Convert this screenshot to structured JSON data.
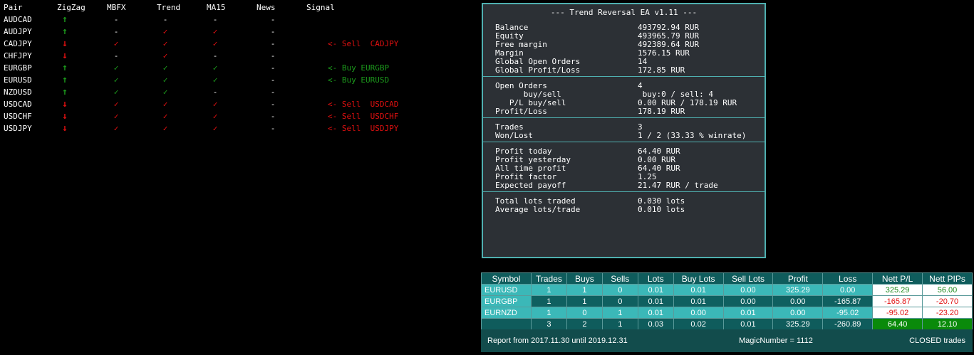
{
  "scanner": {
    "headers": [
      "Pair",
      "ZigZag",
      "MBFX",
      "Trend",
      "MA15",
      "News",
      "Signal"
    ],
    "rows": [
      {
        "cells": [
          "AUDCAD",
          "↑",
          "-",
          "-",
          "-",
          "-"
        ],
        "color": "#e01010"
      },
      {
        "cells": [
          "AUDJPY",
          "↑",
          "-",
          "✓",
          "✓",
          "-"
        ],
        "color": "#e01010"
      },
      {
        "cells": [
          "CADJPY",
          "↓",
          "✓",
          "✓",
          "✓",
          "-"
        ],
        "color": "#e01010",
        "signal": "<- Sell  CADJPY"
      },
      {
        "cells": [
          "CHFJPY",
          "↓",
          "-",
          "✓",
          "-",
          "-"
        ],
        "color": "#e01010"
      },
      {
        "cells": [
          "EURGBP",
          "↑",
          "✓",
          "✓",
          "✓",
          "-"
        ],
        "color": "#1c9a1c",
        "signal": "<- Buy EURGBP"
      },
      {
        "cells": [
          "EURUSD",
          "↑",
          "✓",
          "✓",
          "✓",
          "-"
        ],
        "color": "#1c9a1c",
        "signal": "<- Buy EURUSD"
      },
      {
        "cells": [
          "NZDUSD",
          "↑",
          "✓",
          "✓",
          "-",
          "-"
        ],
        "color": "#1c9a1c"
      },
      {
        "cells": [
          "USDCAD",
          "↓",
          "✓",
          "✓",
          "✓",
          "-"
        ],
        "color": "#e01010",
        "signal": "<- Sell  USDCAD"
      },
      {
        "cells": [
          "USDCHF",
          "↓",
          "✓",
          "✓",
          "✓",
          "-"
        ],
        "color": "#e01010",
        "signal": "<- Sell  USDCHF"
      },
      {
        "cells": [
          "USDJPY",
          "↓",
          "✓",
          "✓",
          "✓",
          "-"
        ],
        "color": "#e01010",
        "signal": "<- Sell  USDJPY"
      }
    ]
  },
  "panel": {
    "title": "--- Trend Reversal EA v1.11 ---",
    "sections": [
      [
        [
          "Balance",
          "493792.94 RUR"
        ],
        [
          "Equity",
          "493965.79 RUR"
        ],
        [
          "Free margin",
          "492389.64 RUR"
        ],
        [
          "Margin",
          "1576.15 RUR"
        ],
        [
          "Global Open Orders",
          "14"
        ],
        [
          "Global Profit/Loss",
          "172.85 RUR"
        ]
      ],
      [
        [
          "Open Orders",
          "4"
        ],
        [
          "      buy/sell",
          " buy:0 / sell: 4"
        ],
        [
          "   P/L buy/sell",
          "0.00 RUR / 178.19 RUR"
        ],
        [
          "Profit/Loss",
          "178.19 RUR"
        ]
      ],
      [
        [
          "Trades",
          "3"
        ],
        [
          "Won/Lost",
          "1 / 2 (33.33 % winrate)"
        ]
      ],
      [
        [
          "Profit today",
          "64.40 RUR"
        ],
        [
          "Profit yesterday",
          "0.00 RUR"
        ],
        [
          "All time profit",
          "64.40 RUR"
        ],
        [
          "Profit factor",
          "1.25"
        ],
        [
          "Expected payoff",
          "21.47 RUR / trade"
        ]
      ],
      [
        [
          "Total lots traded",
          "0.030 lots"
        ],
        [
          "Average lots/trade",
          "0.010 lots"
        ]
      ]
    ]
  },
  "report": {
    "headers": [
      "Symbol",
      "Trades",
      "Buys",
      "Sells",
      "Lots",
      "Buy Lots",
      "Sell Lots",
      "Profit",
      "Loss",
      "Nett P/L",
      "Nett PIPs"
    ],
    "rows": [
      {
        "cells": [
          "EURUSD",
          "1",
          "1",
          "0",
          "0.01",
          "0.01",
          "0.00",
          "325.29",
          "0.00",
          "325.29",
          "56.00"
        ],
        "nett_color": "#1c8a1c"
      },
      {
        "cells": [
          "EURGBP",
          "1",
          "1",
          "0",
          "0.01",
          "0.01",
          "0.00",
          "0.00",
          "-165.87",
          "-165.87",
          "-20.70"
        ],
        "nett_color": "#e01010"
      },
      {
        "cells": [
          "EURNZD",
          "1",
          "0",
          "1",
          "0.01",
          "0.00",
          "0.01",
          "0.00",
          "-95.02",
          "-95.02",
          "-23.20"
        ],
        "nett_color": "#e01010"
      }
    ],
    "total": [
      null,
      "3",
      "2",
      "1",
      "0.03",
      "0.02",
      "0.01",
      "325.29",
      "-260.89",
      "64.40",
      "12.10"
    ],
    "footer": {
      "left": "Report from 2017.11.30 until 2019.12.31",
      "middle": "MagicNumber = 1112",
      "right": "CLOSED trades"
    }
  }
}
